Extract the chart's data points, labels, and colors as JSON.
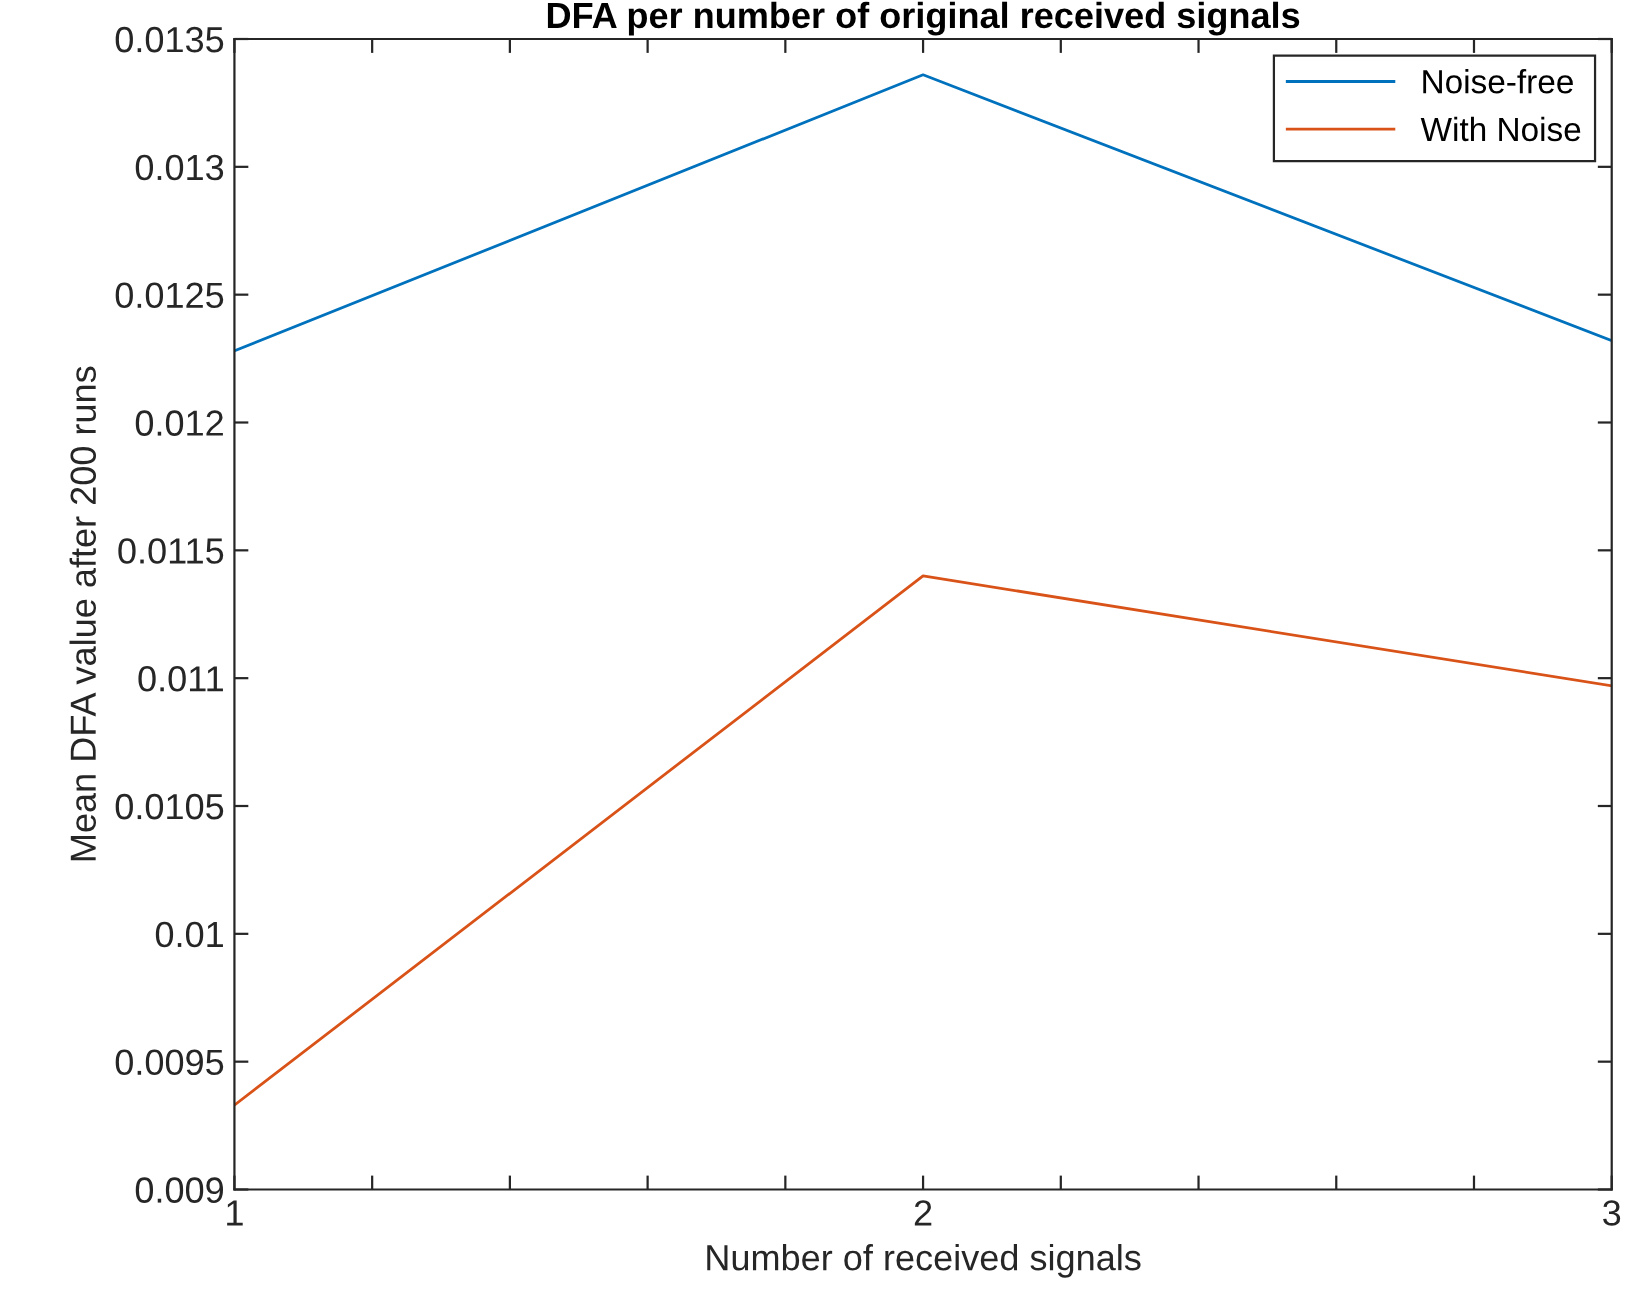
{
  "chart_data": {
    "type": "line",
    "title": "DFA per number of original received signals",
    "xlabel": "Number of received signals",
    "ylabel": "Mean DFA value after 200 runs",
    "x": [
      1,
      2,
      3
    ],
    "series": [
      {
        "name": "Noise-free",
        "color": "#0072bd",
        "values": [
          0.01228,
          0.01336,
          0.01232
        ]
      },
      {
        "name": "With Noise",
        "color": "#d95319",
        "values": [
          0.00933,
          0.0114,
          0.01097
        ]
      }
    ],
    "xlim": [
      1,
      3
    ],
    "ylim": [
      0.009,
      0.0135
    ],
    "xticks": [
      1,
      {
        "value": 1.2,
        "label": null
      },
      {
        "value": 1.4,
        "label": null
      },
      {
        "value": 1.6,
        "label": null
      },
      {
        "value": 1.8,
        "label": null
      },
      2,
      {
        "value": 2.2,
        "label": null
      },
      {
        "value": 2.4,
        "label": null
      },
      {
        "value": 2.6,
        "label": null
      },
      {
        "value": 2.8,
        "label": null
      },
      3
    ],
    "yticks": [
      0.009,
      0.0095,
      0.01,
      0.0105,
      0.011,
      0.0115,
      0.012,
      0.0125,
      0.013,
      0.0135
    ],
    "legend": "top right",
    "grid": false,
    "marker": "none",
    "line_style": "solid"
  }
}
